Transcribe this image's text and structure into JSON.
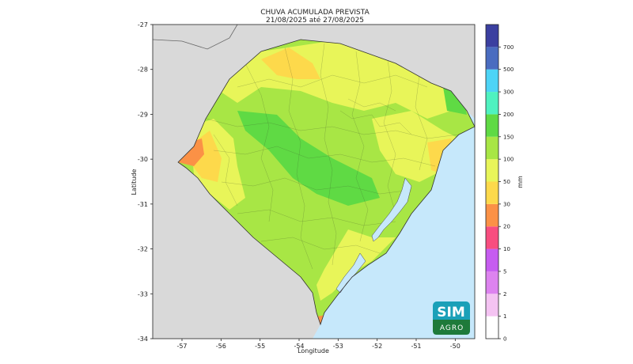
{
  "title_line1": "CHUVA ACUMULADA PREVISTA",
  "title_line2": "21/08/2025 até 27/08/2025",
  "map": {
    "xlabel": "Longitude",
    "ylabel": "Latitude",
    "lon_range": [
      -57.75,
      -49.5
    ],
    "lat_range": [
      -34.0,
      -27.0
    ],
    "x_ticks": [
      "-57",
      "-56",
      "-55",
      "-54",
      "-53",
      "-52",
      "-51",
      "-50"
    ],
    "y_ticks": [
      "-27",
      "-28",
      "-29",
      "-30",
      "-31",
      "-32",
      "-33",
      "-34"
    ],
    "land_color": "#d9d9d9",
    "ocean_color": "#c6e8fb"
  },
  "colorbar": {
    "unit": "mm",
    "levels": [
      "0",
      "1",
      "2",
      "5",
      "10",
      "20",
      "30",
      "50",
      "100",
      "150",
      "200",
      "300",
      "500",
      "700"
    ],
    "colors": [
      "#ffffff",
      "#f4c3f2",
      "#dd83ef",
      "#c65cf0",
      "#f84d7f",
      "#fb9146",
      "#fdd94b",
      "#e8f559",
      "#a8e645",
      "#5fda44",
      "#4ff2c0",
      "#4dd4f6",
      "#4a6cc0",
      "#3b3fa0"
    ]
  },
  "logo": {
    "line1": "SIM",
    "line2": "AGRO",
    "bg_color": "#1aa0b8",
    "bottom_color": "#1e7a3a"
  }
}
